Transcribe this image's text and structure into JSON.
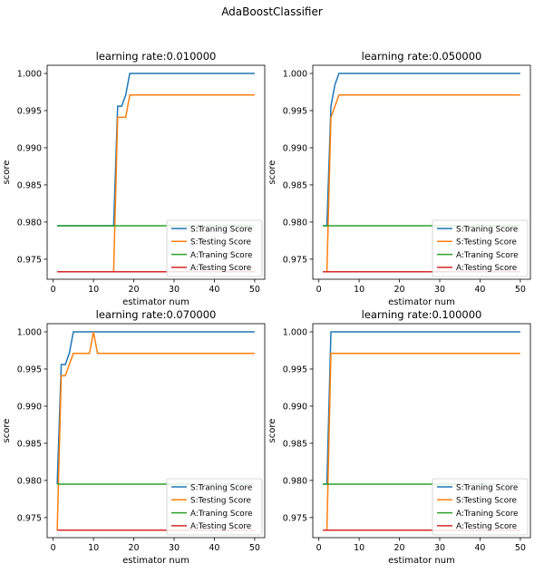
{
  "suptitle": "AdaBoostClassifier",
  "colors": {
    "S:Traning Score": "#1f77b4",
    "S:Testing Score": "#ff7f0e",
    "A:Traning Score": "#2ca02c",
    "A:Testing Score": "#d62728"
  },
  "chart_data": [
    {
      "type": "line",
      "title": "learning rate:0.010000",
      "xlabel": "estimator num",
      "ylabel": "score",
      "xlim": [
        -1.5,
        52.5
      ],
      "ylim": [
        0.9723,
        1.0011
      ],
      "xticks": [
        0,
        10,
        20,
        30,
        40,
        50
      ],
      "yticks": [
        "0.975",
        "0.980",
        "0.985",
        "0.990",
        "0.995",
        "1.000"
      ],
      "legend": "bottom-right",
      "grid": false,
      "series": [
        {
          "name": "S:Traning Score",
          "points": [
            [
              1,
              0.9795
            ],
            [
              15,
              0.9795
            ],
            [
              16,
              0.9956
            ],
            [
              17,
              0.9956
            ],
            [
              18,
              0.9971
            ],
            [
              19,
              1.0
            ],
            [
              50,
              1.0
            ]
          ]
        },
        {
          "name": "S:Testing Score",
          "points": [
            [
              1,
              0.9733
            ],
            [
              15,
              0.9733
            ],
            [
              16,
              0.9941
            ],
            [
              17,
              0.9941
            ],
            [
              18,
              0.9941
            ],
            [
              19,
              0.9971
            ],
            [
              50,
              0.9971
            ]
          ]
        },
        {
          "name": "A:Traning Score",
          "points": [
            [
              1,
              0.9795
            ],
            [
              50,
              0.9795
            ]
          ]
        },
        {
          "name": "A:Testing Score",
          "points": [
            [
              1,
              0.9733
            ],
            [
              50,
              0.9733
            ]
          ]
        }
      ]
    },
    {
      "type": "line",
      "title": "learning rate:0.050000",
      "xlabel": "estimator num",
      "ylabel": "score",
      "xlim": [
        -1.5,
        52.5
      ],
      "ylim": [
        0.9723,
        1.0011
      ],
      "xticks": [
        0,
        10,
        20,
        30,
        40,
        50
      ],
      "yticks": [
        "0.975",
        "0.980",
        "0.985",
        "0.990",
        "0.995",
        "1.000"
      ],
      "legend": "bottom-right",
      "grid": false,
      "series": [
        {
          "name": "S:Traning Score",
          "points": [
            [
              1,
              0.9795
            ],
            [
              2,
              0.9795
            ],
            [
              3,
              0.9956
            ],
            [
              4,
              0.9985
            ],
            [
              5,
              1.0
            ],
            [
              50,
              1.0
            ]
          ]
        },
        {
          "name": "S:Testing Score",
          "points": [
            [
              1,
              0.9733
            ],
            [
              2,
              0.9733
            ],
            [
              3,
              0.9941
            ],
            [
              4,
              0.9956
            ],
            [
              5,
              0.9971
            ],
            [
              50,
              0.9971
            ]
          ]
        },
        {
          "name": "A:Traning Score",
          "points": [
            [
              1,
              0.9795
            ],
            [
              50,
              0.9795
            ]
          ]
        },
        {
          "name": "A:Testing Score",
          "points": [
            [
              1,
              0.9733
            ],
            [
              50,
              0.9733
            ]
          ]
        }
      ]
    },
    {
      "type": "line",
      "title": "learning rate:0.070000",
      "xlabel": "estimator num",
      "ylabel": "score",
      "xlim": [
        -1.5,
        52.5
      ],
      "ylim": [
        0.9723,
        1.0011
      ],
      "xticks": [
        0,
        10,
        20,
        30,
        40,
        50
      ],
      "yticks": [
        "0.975",
        "0.980",
        "0.985",
        "0.990",
        "0.995",
        "1.000"
      ],
      "legend": "bottom-right",
      "grid": false,
      "series": [
        {
          "name": "S:Traning Score",
          "points": [
            [
              1,
              0.9795
            ],
            [
              2,
              0.9956
            ],
            [
              3,
              0.9956
            ],
            [
              4,
              0.9971
            ],
            [
              5,
              1.0
            ],
            [
              50,
              1.0
            ]
          ]
        },
        {
          "name": "S:Testing Score",
          "points": [
            [
              1,
              0.9733
            ],
            [
              2,
              0.9941
            ],
            [
              3,
              0.9941
            ],
            [
              4,
              0.9956
            ],
            [
              5,
              0.9971
            ],
            [
              9,
              0.9971
            ],
            [
              10,
              1.0
            ],
            [
              11,
              0.9971
            ],
            [
              50,
              0.9971
            ]
          ]
        },
        {
          "name": "A:Traning Score",
          "points": [
            [
              1,
              0.9795
            ],
            [
              50,
              0.9795
            ]
          ]
        },
        {
          "name": "A:Testing Score",
          "points": [
            [
              1,
              0.9733
            ],
            [
              50,
              0.9733
            ]
          ]
        }
      ]
    },
    {
      "type": "line",
      "title": "learning rate:0.100000",
      "xlabel": "estimator num",
      "ylabel": "score",
      "xlim": [
        -1.5,
        52.5
      ],
      "ylim": [
        0.9723,
        1.0011
      ],
      "xticks": [
        0,
        10,
        20,
        30,
        40,
        50
      ],
      "yticks": [
        "0.975",
        "0.980",
        "0.985",
        "0.990",
        "0.995",
        "1.000"
      ],
      "legend": "bottom-right",
      "grid": false,
      "series": [
        {
          "name": "S:Traning Score",
          "points": [
            [
              1,
              0.9795
            ],
            [
              2,
              0.9795
            ],
            [
              3,
              1.0
            ],
            [
              50,
              1.0
            ]
          ]
        },
        {
          "name": "S:Testing Score",
          "points": [
            [
              1,
              0.9733
            ],
            [
              2,
              0.9733
            ],
            [
              3,
              0.9971
            ],
            [
              50,
              0.9971
            ]
          ]
        },
        {
          "name": "A:Traning Score",
          "points": [
            [
              1,
              0.9795
            ],
            [
              50,
              0.9795
            ]
          ]
        },
        {
          "name": "A:Testing Score",
          "points": [
            [
              1,
              0.9733
            ],
            [
              50,
              0.9733
            ]
          ]
        }
      ]
    }
  ]
}
